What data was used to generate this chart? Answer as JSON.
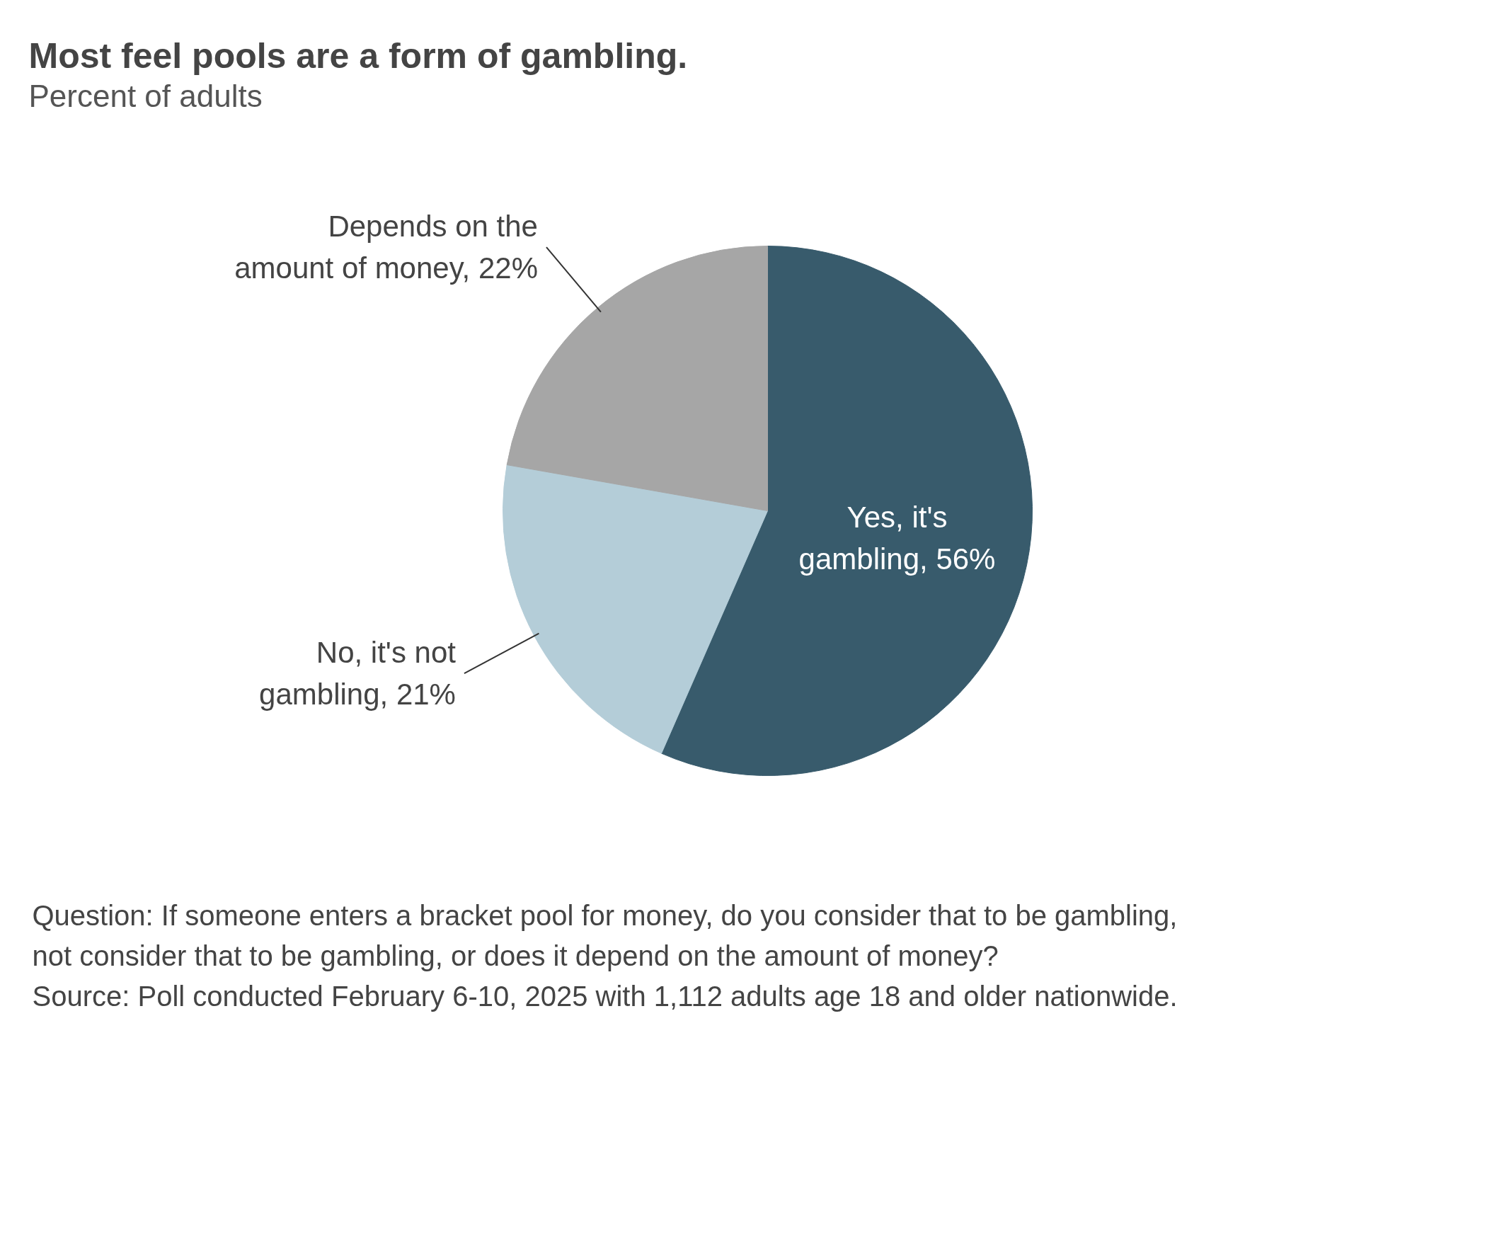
{
  "chart_data": {
    "type": "pie",
    "title": "Most feel pools are a form of gambling.",
    "subtitle": "Percent of adults",
    "categories": [
      "Yes, it's gambling",
      "No, it's not gambling",
      "Depends on the amount of money"
    ],
    "values": [
      56,
      21,
      22
    ],
    "value_labels": [
      "56%",
      "21%",
      "22%"
    ],
    "colors": [
      "#385b6c",
      "#b4cdd8",
      "#a6a6a6"
    ],
    "annotations": [
      "Question: If someone enters a bracket pool for money, do you consider that to be gambling, not consider that to be gambling, or does it depend on the amount of money?",
      "Source: Poll conducted February 6-10, 2025 with 1,112 adults age 18 and older nationwide."
    ]
  }
}
